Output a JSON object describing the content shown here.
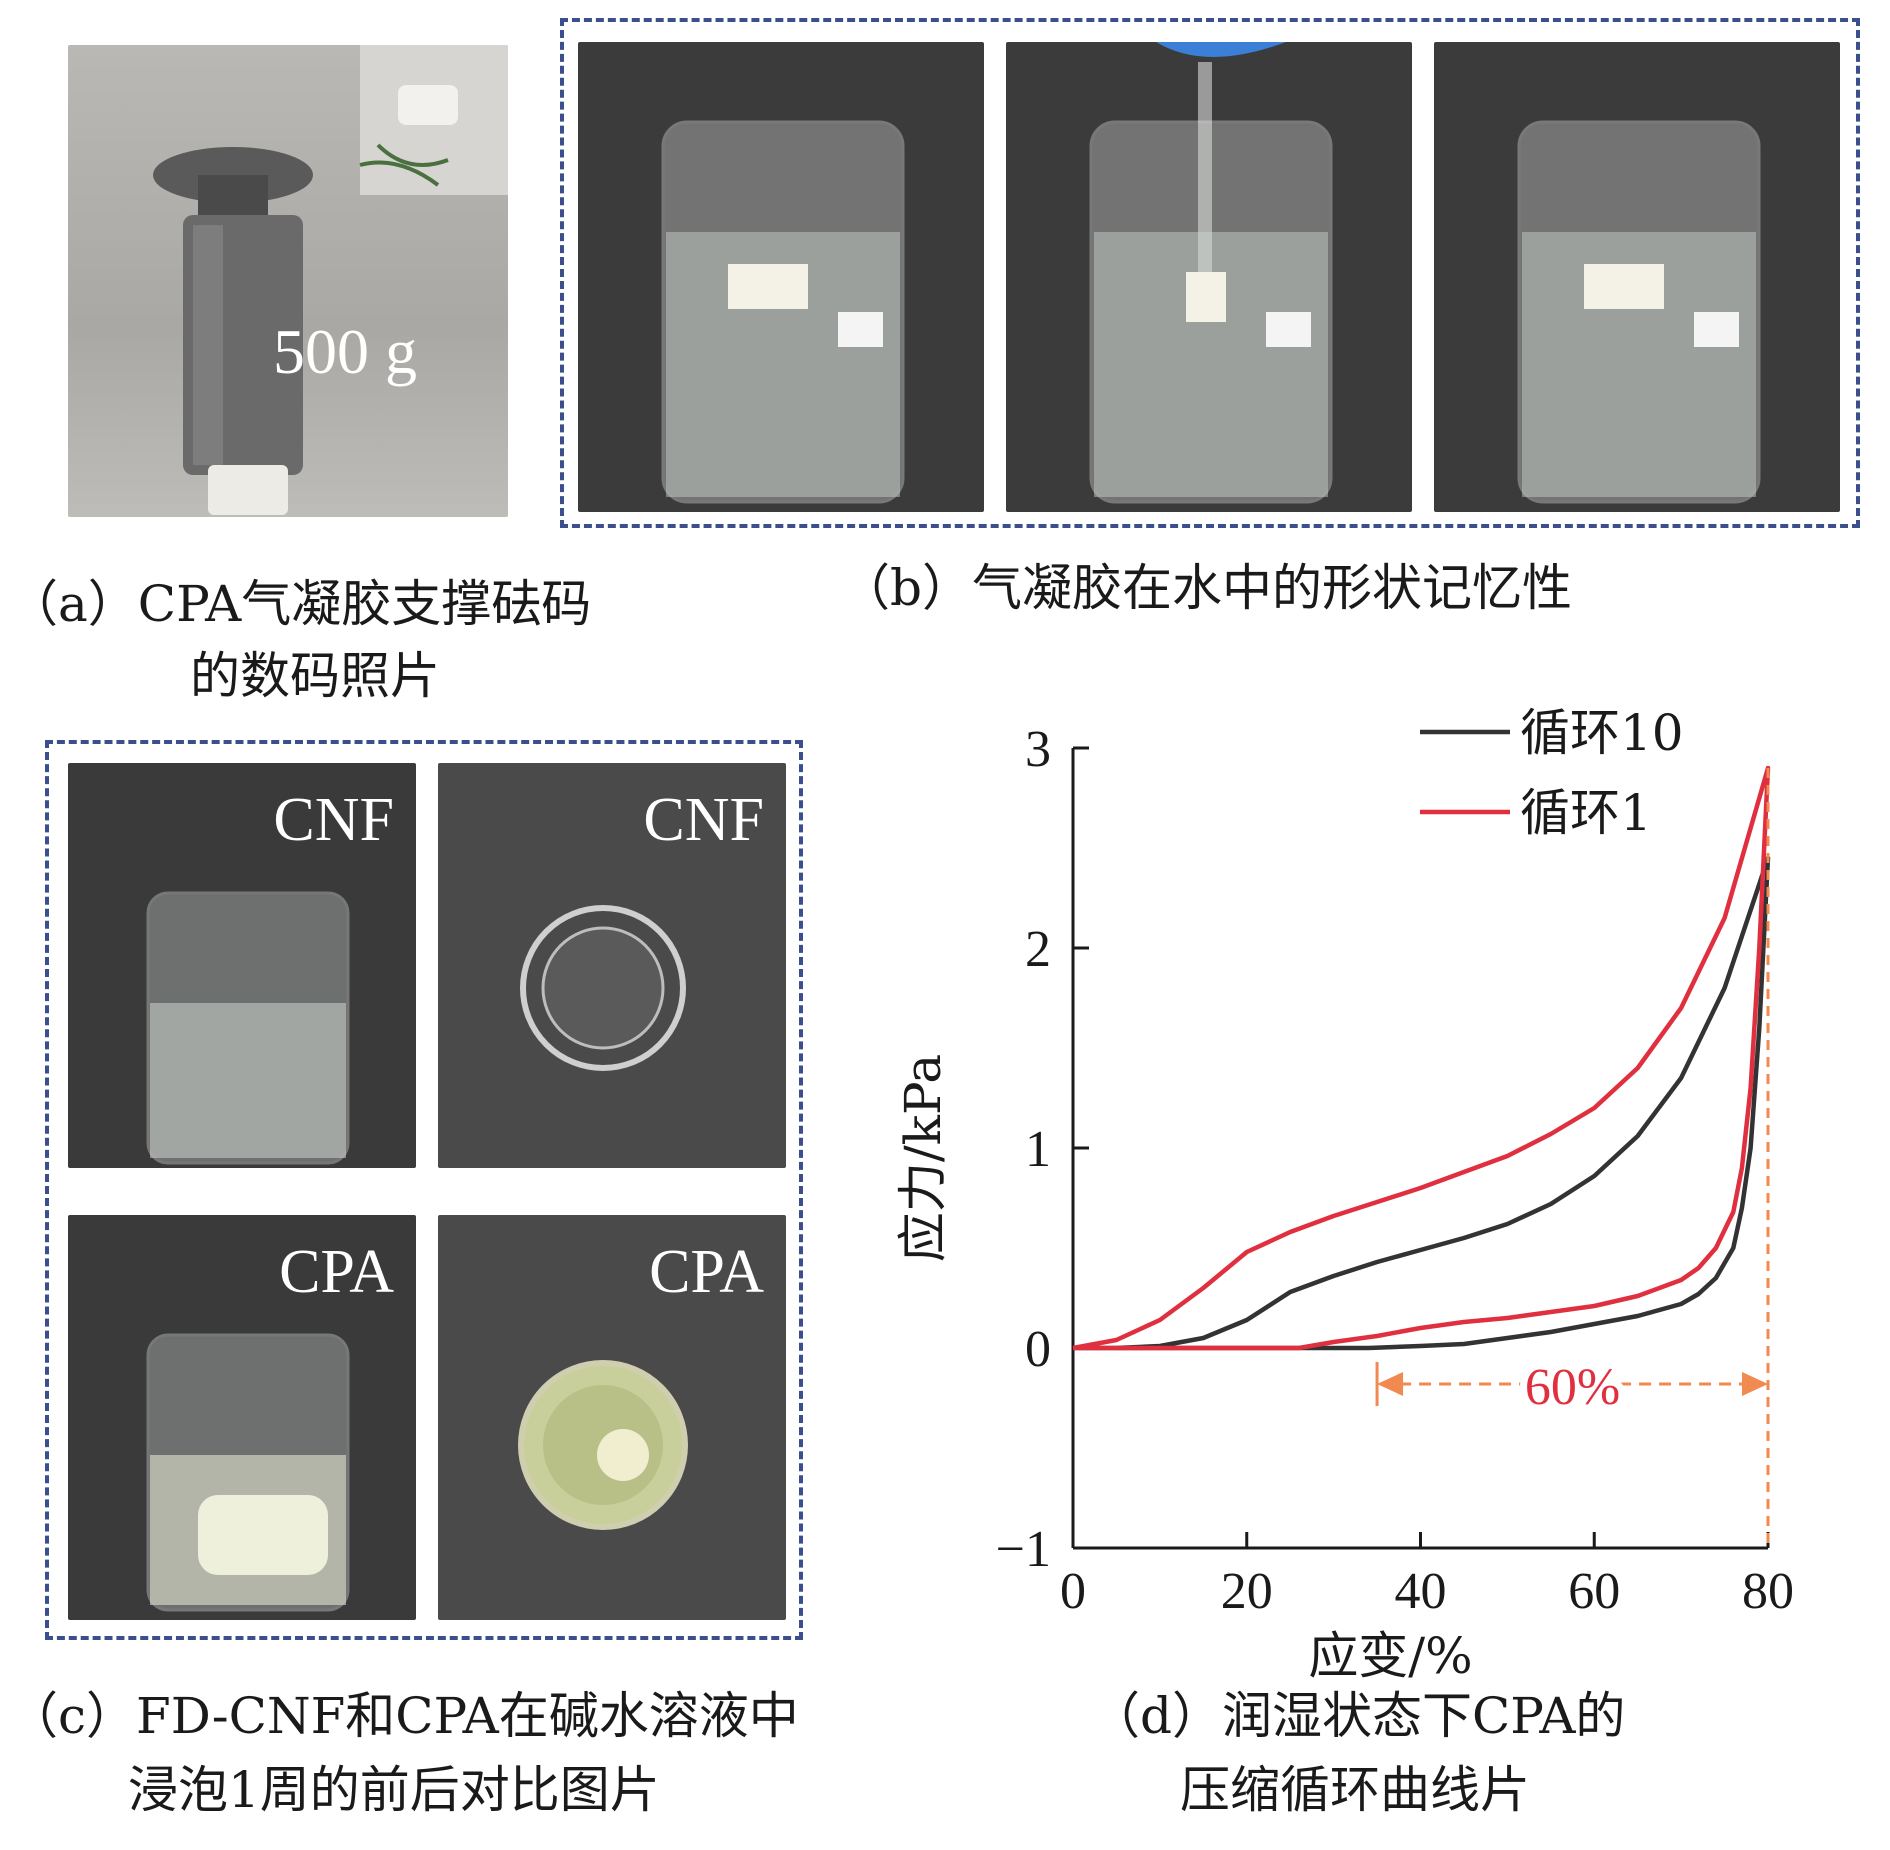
{
  "panel_a": {
    "weight_label": "500 g",
    "caption_line1": "（a）CPA气凝胶支撑砝码",
    "caption_line2": "的数码照片"
  },
  "panel_b": {
    "caption": "（b）气凝胶在水中的形状记忆性"
  },
  "panel_c": {
    "labels": [
      "CNF",
      "CNF",
      "CPA",
      "CPA"
    ],
    "caption_line1": "（c）FD-CNF和CPA在碱水溶液中",
    "caption_line2": "浸泡1周的前后对比图片"
  },
  "panel_d": {
    "caption_line1": "（d）润湿状态下CPA的",
    "caption_line2": "压缩循环曲线片",
    "annotation": "60%"
  },
  "colors": {
    "frame": "#3b4f8f",
    "cycle10": "#333333",
    "cycle1": "#e03040",
    "annotation": "#f08a50"
  },
  "chart_data": {
    "type": "line",
    "xlabel": "应变/%",
    "ylabel": "应力/kPa",
    "xlim": [
      0,
      80
    ],
    "ylim": [
      -1,
      3
    ],
    "xticks": [
      "0",
      "20",
      "40",
      "60",
      "80"
    ],
    "yticks": [
      "−1",
      "0",
      "1",
      "2",
      "3"
    ],
    "legend_position": "top-right",
    "series": [
      {
        "name": "循环10",
        "color": "#333333",
        "loading": [
          [
            0,
            0
          ],
          [
            5,
            0
          ],
          [
            10,
            0.01
          ],
          [
            15,
            0.05
          ],
          [
            20,
            0.14
          ],
          [
            25,
            0.28
          ],
          [
            30,
            0.36
          ],
          [
            35,
            0.43
          ],
          [
            40,
            0.49
          ],
          [
            45,
            0.55
          ],
          [
            50,
            0.62
          ],
          [
            55,
            0.72
          ],
          [
            60,
            0.86
          ],
          [
            65,
            1.06
          ],
          [
            70,
            1.35
          ],
          [
            75,
            1.8
          ],
          [
            80,
            2.45
          ]
        ],
        "unloading": [
          [
            80,
            2.45
          ],
          [
            79,
            1.6
          ],
          [
            78,
            1.0
          ],
          [
            77,
            0.7
          ],
          [
            76,
            0.5
          ],
          [
            74,
            0.35
          ],
          [
            72,
            0.27
          ],
          [
            70,
            0.22
          ],
          [
            65,
            0.16
          ],
          [
            60,
            0.12
          ],
          [
            55,
            0.08
          ],
          [
            50,
            0.05
          ],
          [
            45,
            0.02
          ],
          [
            40,
            0.01
          ],
          [
            34,
            0
          ],
          [
            0,
            0
          ]
        ]
      },
      {
        "name": "循环1",
        "color": "#e03040",
        "loading": [
          [
            0,
            0
          ],
          [
            5,
            0.04
          ],
          [
            10,
            0.14
          ],
          [
            15,
            0.3
          ],
          [
            20,
            0.48
          ],
          [
            25,
            0.58
          ],
          [
            30,
            0.66
          ],
          [
            35,
            0.73
          ],
          [
            40,
            0.8
          ],
          [
            45,
            0.88
          ],
          [
            50,
            0.96
          ],
          [
            55,
            1.07
          ],
          [
            60,
            1.2
          ],
          [
            65,
            1.4
          ],
          [
            70,
            1.7
          ],
          [
            75,
            2.15
          ],
          [
            80,
            2.9
          ]
        ],
        "unloading": [
          [
            80,
            2.9
          ],
          [
            79,
            2.0
          ],
          [
            78,
            1.3
          ],
          [
            77,
            0.9
          ],
          [
            76,
            0.68
          ],
          [
            74,
            0.5
          ],
          [
            72,
            0.4
          ],
          [
            70,
            0.34
          ],
          [
            65,
            0.26
          ],
          [
            60,
            0.21
          ],
          [
            55,
            0.18
          ],
          [
            50,
            0.15
          ],
          [
            45,
            0.13
          ],
          [
            40,
            0.1
          ],
          [
            35,
            0.06
          ],
          [
            30,
            0.03
          ],
          [
            26,
            0
          ],
          [
            0,
            0
          ]
        ]
      }
    ],
    "annotations": [
      {
        "text": "60%",
        "type": "double-arrow",
        "x_start": 35,
        "x_end": 80,
        "y": -0.12,
        "vline_x": 80
      }
    ]
  }
}
